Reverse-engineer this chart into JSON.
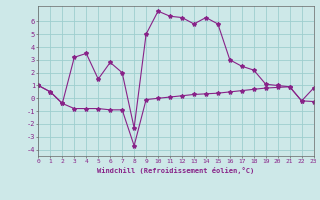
{
  "xlabel": "Windchill (Refroidissement éolien,°C)",
  "background_color": "#cde8e8",
  "grid_color": "#9ecece",
  "line_color": "#882288",
  "x_values": [
    0,
    1,
    2,
    3,
    4,
    5,
    6,
    7,
    8,
    9,
    10,
    11,
    12,
    13,
    14,
    15,
    16,
    17,
    18,
    19,
    20,
    21,
    22,
    23
  ],
  "line1_y": [
    1.0,
    0.5,
    -0.4,
    -0.8,
    -0.8,
    -0.8,
    -0.9,
    -0.9,
    -3.7,
    -0.1,
    0.0,
    0.1,
    0.2,
    0.3,
    0.35,
    0.4,
    0.5,
    0.6,
    0.7,
    0.8,
    0.85,
    0.9,
    -0.2,
    -0.25
  ],
  "line2_y": [
    1.0,
    0.5,
    -0.4,
    3.2,
    3.5,
    1.5,
    2.8,
    2.0,
    -2.3,
    5.0,
    6.8,
    6.4,
    6.3,
    5.8,
    6.3,
    5.8,
    3.0,
    2.5,
    2.2,
    1.1,
    1.0,
    0.9,
    -0.2,
    0.8
  ],
  "xlim": [
    0,
    23
  ],
  "ylim": [
    -4.5,
    7.2
  ],
  "yticks": [
    -4,
    -3,
    -2,
    -1,
    0,
    1,
    2,
    3,
    4,
    5,
    6
  ],
  "xticks": [
    0,
    1,
    2,
    3,
    4,
    5,
    6,
    7,
    8,
    9,
    10,
    11,
    12,
    13,
    14,
    15,
    16,
    17,
    18,
    19,
    20,
    21,
    22,
    23
  ]
}
